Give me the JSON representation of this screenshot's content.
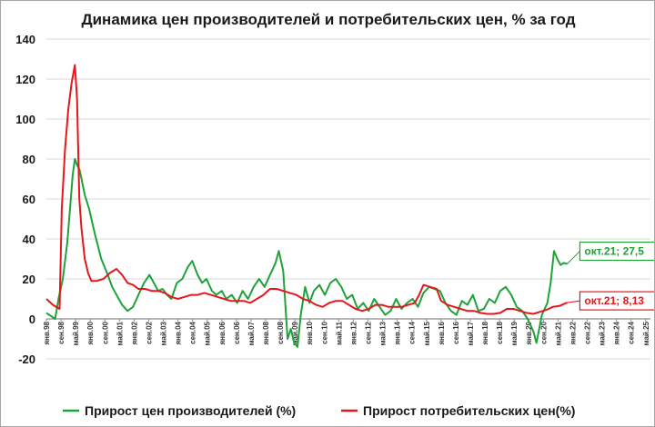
{
  "chart_data": {
    "type": "line",
    "title": "Динамика цен производителей и потребительских цен, % за год",
    "xlabel": "",
    "ylabel": "",
    "ylim": [
      -20,
      140
    ],
    "yticks": [
      -20,
      0,
      20,
      40,
      60,
      80,
      100,
      120,
      140
    ],
    "xlim": [
      1998.0,
      2025.55
    ],
    "grid": true,
    "legend": "bottom",
    "x_tick_labels": [
      "янв.98",
      "сен.98",
      "май.99",
      "янв.00",
      "сен.00",
      "май.01",
      "янв.02",
      "сен.02",
      "май.03",
      "янв.04",
      "сен.04",
      "май.05",
      "янв.06",
      "сен.06",
      "май.07",
      "янв.08",
      "сен.08",
      "май.09",
      "янв.10",
      "сен.10",
      "май.11",
      "янв.12",
      "сен.12",
      "май.13",
      "янв.14",
      "сен.14",
      "май.15",
      "янв.16",
      "сен.16",
      "май.17",
      "янв.18",
      "сен.18",
      "май.19",
      "янв.20",
      "сен.20",
      "май.21",
      "янв.22",
      "сен.22",
      "май.23",
      "янв.24",
      "сен.24",
      "май.25"
    ],
    "series": [
      {
        "name": "Прирост цен производителей (%)",
        "color": "#1fa23a",
        "x": [
          1998.0,
          1998.4,
          1998.55,
          1998.75,
          1998.95,
          1999.1,
          1999.2,
          1999.3,
          1999.4,
          1999.5,
          1999.6,
          1999.75,
          1999.95,
          2000.2,
          2000.5,
          2000.8,
          2001.0,
          2001.2,
          2001.45,
          2001.7,
          2001.95,
          2002.2,
          2002.45,
          2002.7,
          2002.9,
          2003.1,
          2003.3,
          2003.5,
          2003.7,
          2003.95,
          2004.2,
          2004.45,
          2004.65,
          2004.9,
          2005.1,
          2005.3,
          2005.55,
          2005.75,
          2006.0,
          2006.2,
          2006.45,
          2006.7,
          2006.95,
          2007.2,
          2007.45,
          2007.7,
          2007.95,
          2008.2,
          2008.45,
          2008.6,
          2008.8,
          2009.0,
          2009.15,
          2009.3,
          2009.45,
          2009.6,
          2009.8,
          2010.0,
          2010.2,
          2010.45,
          2010.7,
          2010.95,
          2011.2,
          2011.45,
          2011.7,
          2011.95,
          2012.2,
          2012.45,
          2012.7,
          2012.95,
          2013.2,
          2013.45,
          2013.7,
          2013.95,
          2014.2,
          2014.45,
          2014.7,
          2014.95,
          2015.2,
          2015.45,
          2015.7,
          2015.95,
          2016.2,
          2016.45,
          2016.7,
          2016.95,
          2017.2,
          2017.45,
          2017.7,
          2017.95,
          2018.2,
          2018.45,
          2018.7,
          2018.95,
          2019.2,
          2019.45,
          2019.7,
          2019.95,
          2020.2,
          2020.35,
          2020.6,
          2020.85,
          2021.0,
          2021.15,
          2021.3,
          2021.45,
          2021.6,
          2021.75
        ],
        "values": [
          3,
          0,
          10,
          20,
          38,
          58,
          72,
          80,
          77,
          75,
          70,
          62,
          55,
          43,
          30,
          22,
          16,
          12,
          7,
          4,
          6,
          12,
          18,
          22,
          18,
          14,
          15,
          12,
          10,
          18,
          20,
          26,
          29,
          22,
          18,
          20,
          14,
          12,
          14,
          10,
          12,
          8,
          14,
          10,
          16,
          20,
          16,
          22,
          28,
          34,
          24,
          -10,
          -5,
          -12,
          -14,
          2,
          16,
          8,
          14,
          17,
          12,
          18,
          20,
          16,
          10,
          12,
          5,
          8,
          4,
          10,
          6,
          2,
          4,
          10,
          5,
          8,
          10,
          6,
          13,
          16,
          15,
          14,
          8,
          4,
          2,
          9,
          7,
          12,
          4,
          5,
          10,
          8,
          14,
          16,
          12,
          6,
          4,
          0,
          -6,
          -12,
          2,
          8,
          18,
          34,
          30,
          27,
          28,
          27.5
        ],
        "callout_label": "окт.21; 27,5"
      },
      {
        "name": "Прирост потребительских цен(%)",
        "color": "#e5171b",
        "x": [
          1998.0,
          1998.3,
          1998.6,
          1998.7,
          1998.85,
          1999.0,
          1999.15,
          1999.3,
          1999.4,
          1999.5,
          1999.6,
          1999.75,
          1999.9,
          2000.05,
          2000.3,
          2000.6,
          2000.9,
          2001.2,
          2001.45,
          2001.7,
          2001.95,
          2002.2,
          2002.5,
          2002.8,
          2003.1,
          2003.4,
          2003.7,
          2004.0,
          2004.3,
          2004.6,
          2004.9,
          2005.2,
          2005.5,
          2005.8,
          2006.1,
          2006.4,
          2006.7,
          2007.0,
          2007.3,
          2007.6,
          2007.9,
          2008.2,
          2008.5,
          2008.8,
          2009.1,
          2009.4,
          2009.7,
          2010.0,
          2010.3,
          2010.6,
          2010.9,
          2011.2,
          2011.5,
          2011.8,
          2012.1,
          2012.4,
          2012.7,
          2013.0,
          2013.3,
          2013.6,
          2013.9,
          2014.2,
          2014.5,
          2014.8,
          2015.0,
          2015.2,
          2015.5,
          2015.8,
          2016.0,
          2016.3,
          2016.6,
          2016.9,
          2017.2,
          2017.5,
          2017.8,
          2018.1,
          2018.4,
          2018.7,
          2019.0,
          2019.3,
          2019.6,
          2019.9,
          2020.2,
          2020.5,
          2020.8,
          2021.1,
          2021.4,
          2021.75
        ],
        "values": [
          10,
          7,
          5,
          55,
          85,
          105,
          118,
          127,
          110,
          60,
          45,
          30,
          23,
          19,
          19,
          20,
          23,
          25,
          22,
          18,
          17,
          15,
          15,
          14,
          14,
          13,
          11,
          10,
          11,
          12,
          12,
          13,
          12,
          11,
          10,
          9,
          9,
          9,
          8,
          10,
          12,
          15,
          15,
          14,
          13,
          12,
          10,
          9,
          7,
          6,
          8,
          9,
          9,
          7,
          5,
          4,
          5,
          7,
          7,
          6,
          6,
          6,
          7,
          8,
          12,
          17,
          16,
          15,
          9,
          7,
          6,
          5,
          4,
          4,
          3,
          2.5,
          2.5,
          3,
          5,
          5,
          4,
          3,
          2.5,
          3.5,
          4.5,
          6,
          6.5,
          8.13
        ],
        "callout_label": "окт.21; 8,13"
      }
    ]
  }
}
